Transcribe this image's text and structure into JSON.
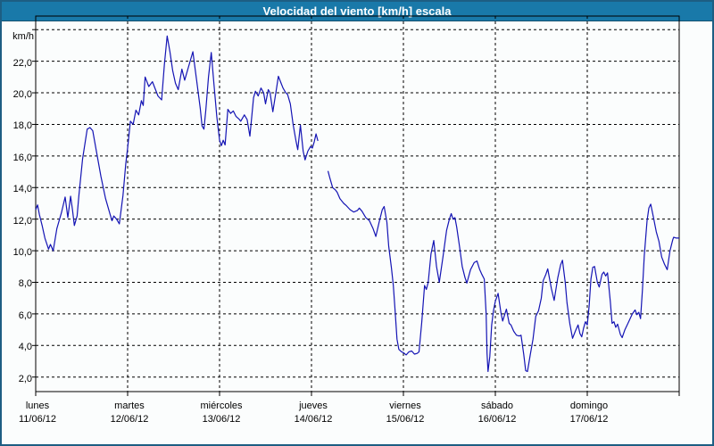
{
  "window": {
    "title": "Velocidad del viento [km/h] escala"
  },
  "colors": {
    "line": "#1414b4",
    "titlebar_bg": "#1979a9",
    "titlebar_text": "#ffffff",
    "page_border": "#1d5e83",
    "page_bg": "#fbfdfd",
    "grid": "#000000",
    "axis_text": "#000000"
  },
  "chart_data": {
    "type": "line",
    "title": "Velocidad del viento [km/h] escala",
    "ylabel": "km/h",
    "xlabel": "",
    "ylim": [
      1.08,
      24.86
    ],
    "xlim_days": [
      0,
      7
    ],
    "grid": "dashed",
    "legend": "none",
    "y_ticks": [
      {
        "value": 2,
        "label": "2,0"
      },
      {
        "value": 4,
        "label": "4,0"
      },
      {
        "value": 6,
        "label": "6,0"
      },
      {
        "value": 8,
        "label": "8,0"
      },
      {
        "value": 10,
        "label": "10,0"
      },
      {
        "value": 12,
        "label": "12,0"
      },
      {
        "value": 14,
        "label": "14,0"
      },
      {
        "value": 16,
        "label": "16,0"
      },
      {
        "value": 18,
        "label": "18,0"
      },
      {
        "value": 20,
        "label": "20,0"
      },
      {
        "value": 22,
        "label": "22,0"
      },
      {
        "value": 24,
        "label": ""
      }
    ],
    "x_days": [
      {
        "name": "lunes",
        "date": "11/06/12"
      },
      {
        "name": "martes",
        "date": "12/06/12"
      },
      {
        "name": "miércoles",
        "date": "13/06/12"
      },
      {
        "name": "jueves",
        "date": "14/06/12"
      },
      {
        "name": "viernes",
        "date": "15/06/12"
      },
      {
        "name": "sábado",
        "date": "16/06/12"
      },
      {
        "name": "domingo",
        "date": "17/06/12"
      }
    ],
    "series": [
      {
        "name": "Velocidad del viento",
        "unit": "km/h",
        "note": "x in days since lunes 11/06/12 00:00; gap in data during jueves morning",
        "segments": [
          [
            [
              0.0,
              12.6
            ],
            [
              0.02,
              12.9
            ],
            [
              0.04,
              12.3
            ],
            [
              0.07,
              11.6
            ],
            [
              0.1,
              10.8
            ],
            [
              0.14,
              10.1
            ],
            [
              0.16,
              10.4
            ],
            [
              0.19,
              10.0
            ],
            [
              0.23,
              11.4
            ],
            [
              0.28,
              12.4
            ],
            [
              0.32,
              13.4
            ],
            [
              0.35,
              12.1
            ],
            [
              0.38,
              13.45
            ],
            [
              0.4,
              12.6
            ],
            [
              0.42,
              11.6
            ],
            [
              0.45,
              12.2
            ],
            [
              0.47,
              13.5
            ],
            [
              0.51,
              15.8
            ],
            [
              0.56,
              17.7
            ],
            [
              0.59,
              17.8
            ],
            [
              0.62,
              17.6
            ],
            [
              0.66,
              16.3
            ],
            [
              0.71,
              14.7
            ],
            [
              0.76,
              13.3
            ],
            [
              0.81,
              12.3
            ],
            [
              0.83,
              11.9
            ],
            [
              0.85,
              12.2
            ],
            [
              0.88,
              12.0
            ],
            [
              0.91,
              11.7
            ],
            [
              0.95,
              13.5
            ],
            [
              0.98,
              15.5
            ],
            [
              1.0,
              16.5
            ],
            [
              1.03,
              18.2
            ],
            [
              1.06,
              18.0
            ],
            [
              1.09,
              18.9
            ],
            [
              1.12,
              18.6
            ],
            [
              1.15,
              19.5
            ],
            [
              1.17,
              19.2
            ],
            [
              1.19,
              21.0
            ],
            [
              1.23,
              20.4
            ],
            [
              1.27,
              20.7
            ],
            [
              1.33,
              19.8
            ],
            [
              1.37,
              19.55
            ],
            [
              1.4,
              21.8
            ],
            [
              1.43,
              23.6
            ],
            [
              1.46,
              22.6
            ],
            [
              1.49,
              21.4
            ],
            [
              1.52,
              20.6
            ],
            [
              1.55,
              20.2
            ],
            [
              1.59,
              21.5
            ],
            [
              1.62,
              20.8
            ],
            [
              1.66,
              21.6
            ],
            [
              1.71,
              22.6
            ],
            [
              1.75,
              20.8
            ],
            [
              1.79,
              19.0
            ],
            [
              1.81,
              17.9
            ],
            [
              1.83,
              17.7
            ],
            [
              1.85,
              18.9
            ],
            [
              1.88,
              21.0
            ],
            [
              1.91,
              22.55
            ],
            [
              1.94,
              20.5
            ],
            [
              1.97,
              18.5
            ],
            [
              2.0,
              17.0
            ],
            [
              2.02,
              16.65
            ],
            [
              2.04,
              17.0
            ],
            [
              2.06,
              16.7
            ],
            [
              2.09,
              18.95
            ],
            [
              2.12,
              18.7
            ],
            [
              2.15,
              18.85
            ],
            [
              2.18,
              18.5
            ],
            [
              2.21,
              18.35
            ],
            [
              2.23,
              18.2
            ],
            [
              2.27,
              18.6
            ],
            [
              2.3,
              18.3
            ],
            [
              2.33,
              17.25
            ],
            [
              2.37,
              19.7
            ],
            [
              2.39,
              20.1
            ],
            [
              2.42,
              19.8
            ],
            [
              2.45,
              20.3
            ],
            [
              2.48,
              20.0
            ],
            [
              2.5,
              19.3
            ],
            [
              2.53,
              20.2
            ],
            [
              2.55,
              20.0
            ],
            [
              2.58,
              18.8
            ],
            [
              2.62,
              20.3
            ],
            [
              2.64,
              21.05
            ],
            [
              2.67,
              20.6
            ],
            [
              2.69,
              20.3
            ],
            [
              2.72,
              20.0
            ],
            [
              2.74,
              19.9
            ],
            [
              2.77,
              19.3
            ],
            [
              2.8,
              18.0
            ],
            [
              2.83,
              17.0
            ],
            [
              2.85,
              16.4
            ],
            [
              2.88,
              17.95
            ],
            [
              2.91,
              16.3
            ],
            [
              2.93,
              15.75
            ],
            [
              2.96,
              16.3
            ],
            [
              2.99,
              16.6
            ],
            [
              3.01,
              16.5
            ],
            [
              3.03,
              16.9
            ],
            [
              3.05,
              17.4
            ],
            [
              3.07,
              16.95
            ]
          ],
          [
            [
              3.18,
              15.05
            ],
            [
              3.2,
              14.6
            ],
            [
              3.23,
              14.0
            ],
            [
              3.26,
              13.85
            ],
            [
              3.28,
              13.7
            ],
            [
              3.31,
              13.3
            ],
            [
              3.35,
              13.0
            ],
            [
              3.38,
              12.85
            ],
            [
              3.42,
              12.6
            ],
            [
              3.46,
              12.45
            ],
            [
              3.5,
              12.55
            ],
            [
              3.52,
              12.7
            ],
            [
              3.55,
              12.5
            ],
            [
              3.59,
              12.1
            ],
            [
              3.63,
              11.9
            ],
            [
              3.67,
              11.4
            ],
            [
              3.7,
              10.9
            ],
            [
              3.74,
              11.9
            ],
            [
              3.77,
              12.6
            ],
            [
              3.79,
              12.8
            ],
            [
              3.82,
              11.8
            ],
            [
              3.84,
              10.3
            ],
            [
              3.87,
              8.9
            ],
            [
              3.89,
              7.8
            ],
            [
              3.91,
              6.2
            ],
            [
              3.93,
              4.4
            ],
            [
              3.95,
              3.75
            ],
            [
              3.98,
              3.6
            ],
            [
              4.0,
              3.55
            ],
            [
              4.03,
              3.4
            ],
            [
              4.06,
              3.6
            ],
            [
              4.09,
              3.65
            ],
            [
              4.12,
              3.45
            ],
            [
              4.15,
              3.5
            ],
            [
              4.17,
              3.6
            ],
            [
              4.2,
              5.5
            ],
            [
              4.23,
              7.8
            ],
            [
              4.25,
              7.55
            ],
            [
              4.27,
              8.0
            ],
            [
              4.3,
              9.8
            ],
            [
              4.33,
              10.65
            ],
            [
              4.36,
              9.0
            ],
            [
              4.39,
              8.0
            ],
            [
              4.43,
              9.6
            ],
            [
              4.47,
              11.3
            ],
            [
              4.5,
              12.0
            ],
            [
              4.52,
              12.35
            ],
            [
              4.54,
              12.0
            ],
            [
              4.56,
              12.1
            ],
            [
              4.58,
              11.5
            ],
            [
              4.61,
              10.3
            ],
            [
              4.64,
              9.0
            ],
            [
              4.67,
              8.3
            ],
            [
              4.69,
              7.95
            ],
            [
              4.73,
              8.8
            ],
            [
              4.77,
              9.25
            ],
            [
              4.8,
              9.35
            ],
            [
              4.83,
              8.8
            ],
            [
              4.85,
              8.55
            ],
            [
              4.88,
              8.2
            ],
            [
              4.9,
              6.0
            ],
            [
              4.91,
              3.5
            ],
            [
              4.92,
              2.35
            ],
            [
              4.94,
              3.3
            ],
            [
              4.96,
              5.3
            ],
            [
              4.98,
              6.2
            ],
            [
              5.0,
              6.8
            ],
            [
              5.03,
              7.3
            ],
            [
              5.06,
              6.1
            ],
            [
              5.08,
              5.55
            ],
            [
              5.12,
              6.3
            ],
            [
              5.15,
              5.4
            ],
            [
              5.17,
              5.3
            ],
            [
              5.2,
              4.9
            ],
            [
              5.23,
              4.65
            ],
            [
              5.26,
              4.6
            ],
            [
              5.28,
              4.65
            ],
            [
              5.31,
              3.4
            ],
            [
              5.33,
              2.4
            ],
            [
              5.35,
              2.35
            ],
            [
              5.38,
              3.4
            ],
            [
              5.41,
              4.4
            ],
            [
              5.44,
              5.85
            ],
            [
              5.47,
              6.2
            ],
            [
              5.5,
              7.0
            ],
            [
              5.52,
              8.1
            ],
            [
              5.55,
              8.5
            ],
            [
              5.57,
              8.85
            ],
            [
              5.61,
              7.6
            ],
            [
              5.64,
              6.85
            ],
            [
              5.68,
              8.3
            ],
            [
              5.71,
              9.1
            ],
            [
              5.73,
              9.4
            ],
            [
              5.76,
              8.0
            ],
            [
              5.78,
              6.7
            ],
            [
              5.81,
              5.4
            ],
            [
              5.84,
              4.45
            ],
            [
              5.87,
              4.9
            ],
            [
              5.9,
              5.3
            ],
            [
              5.92,
              4.75
            ],
            [
              5.94,
              4.55
            ],
            [
              5.96,
              5.1
            ],
            [
              5.98,
              5.5
            ],
            [
              6.0,
              5.3
            ],
            [
              6.02,
              6.5
            ],
            [
              6.04,
              8.2
            ],
            [
              6.06,
              8.95
            ],
            [
              6.08,
              9.0
            ],
            [
              6.11,
              8.0
            ],
            [
              6.13,
              7.7
            ],
            [
              6.16,
              8.5
            ],
            [
              6.18,
              8.65
            ],
            [
              6.2,
              8.4
            ],
            [
              6.22,
              8.6
            ],
            [
              6.25,
              6.8
            ],
            [
              6.27,
              5.4
            ],
            [
              6.29,
              5.5
            ],
            [
              6.31,
              5.15
            ],
            [
              6.33,
              5.35
            ],
            [
              6.36,
              4.7
            ],
            [
              6.38,
              4.5
            ],
            [
              6.41,
              5.0
            ],
            [
              6.45,
              5.5
            ],
            [
              6.49,
              6.0
            ],
            [
              6.52,
              6.25
            ],
            [
              6.54,
              5.95
            ],
            [
              6.56,
              6.1
            ],
            [
              6.58,
              5.7
            ],
            [
              6.6,
              7.5
            ],
            [
              6.62,
              9.7
            ],
            [
              6.65,
              11.9
            ],
            [
              6.67,
              12.7
            ],
            [
              6.69,
              12.95
            ],
            [
              6.72,
              12.1
            ],
            [
              6.75,
              11.2
            ],
            [
              6.78,
              10.6
            ],
            [
              6.81,
              9.6
            ],
            [
              6.84,
              9.15
            ],
            [
              6.87,
              8.8
            ],
            [
              6.9,
              10.0
            ],
            [
              6.93,
              10.7
            ],
            [
              6.94,
              10.85
            ],
            [
              6.97,
              10.8
            ],
            [
              7.0,
              10.8
            ]
          ]
        ]
      }
    ]
  }
}
